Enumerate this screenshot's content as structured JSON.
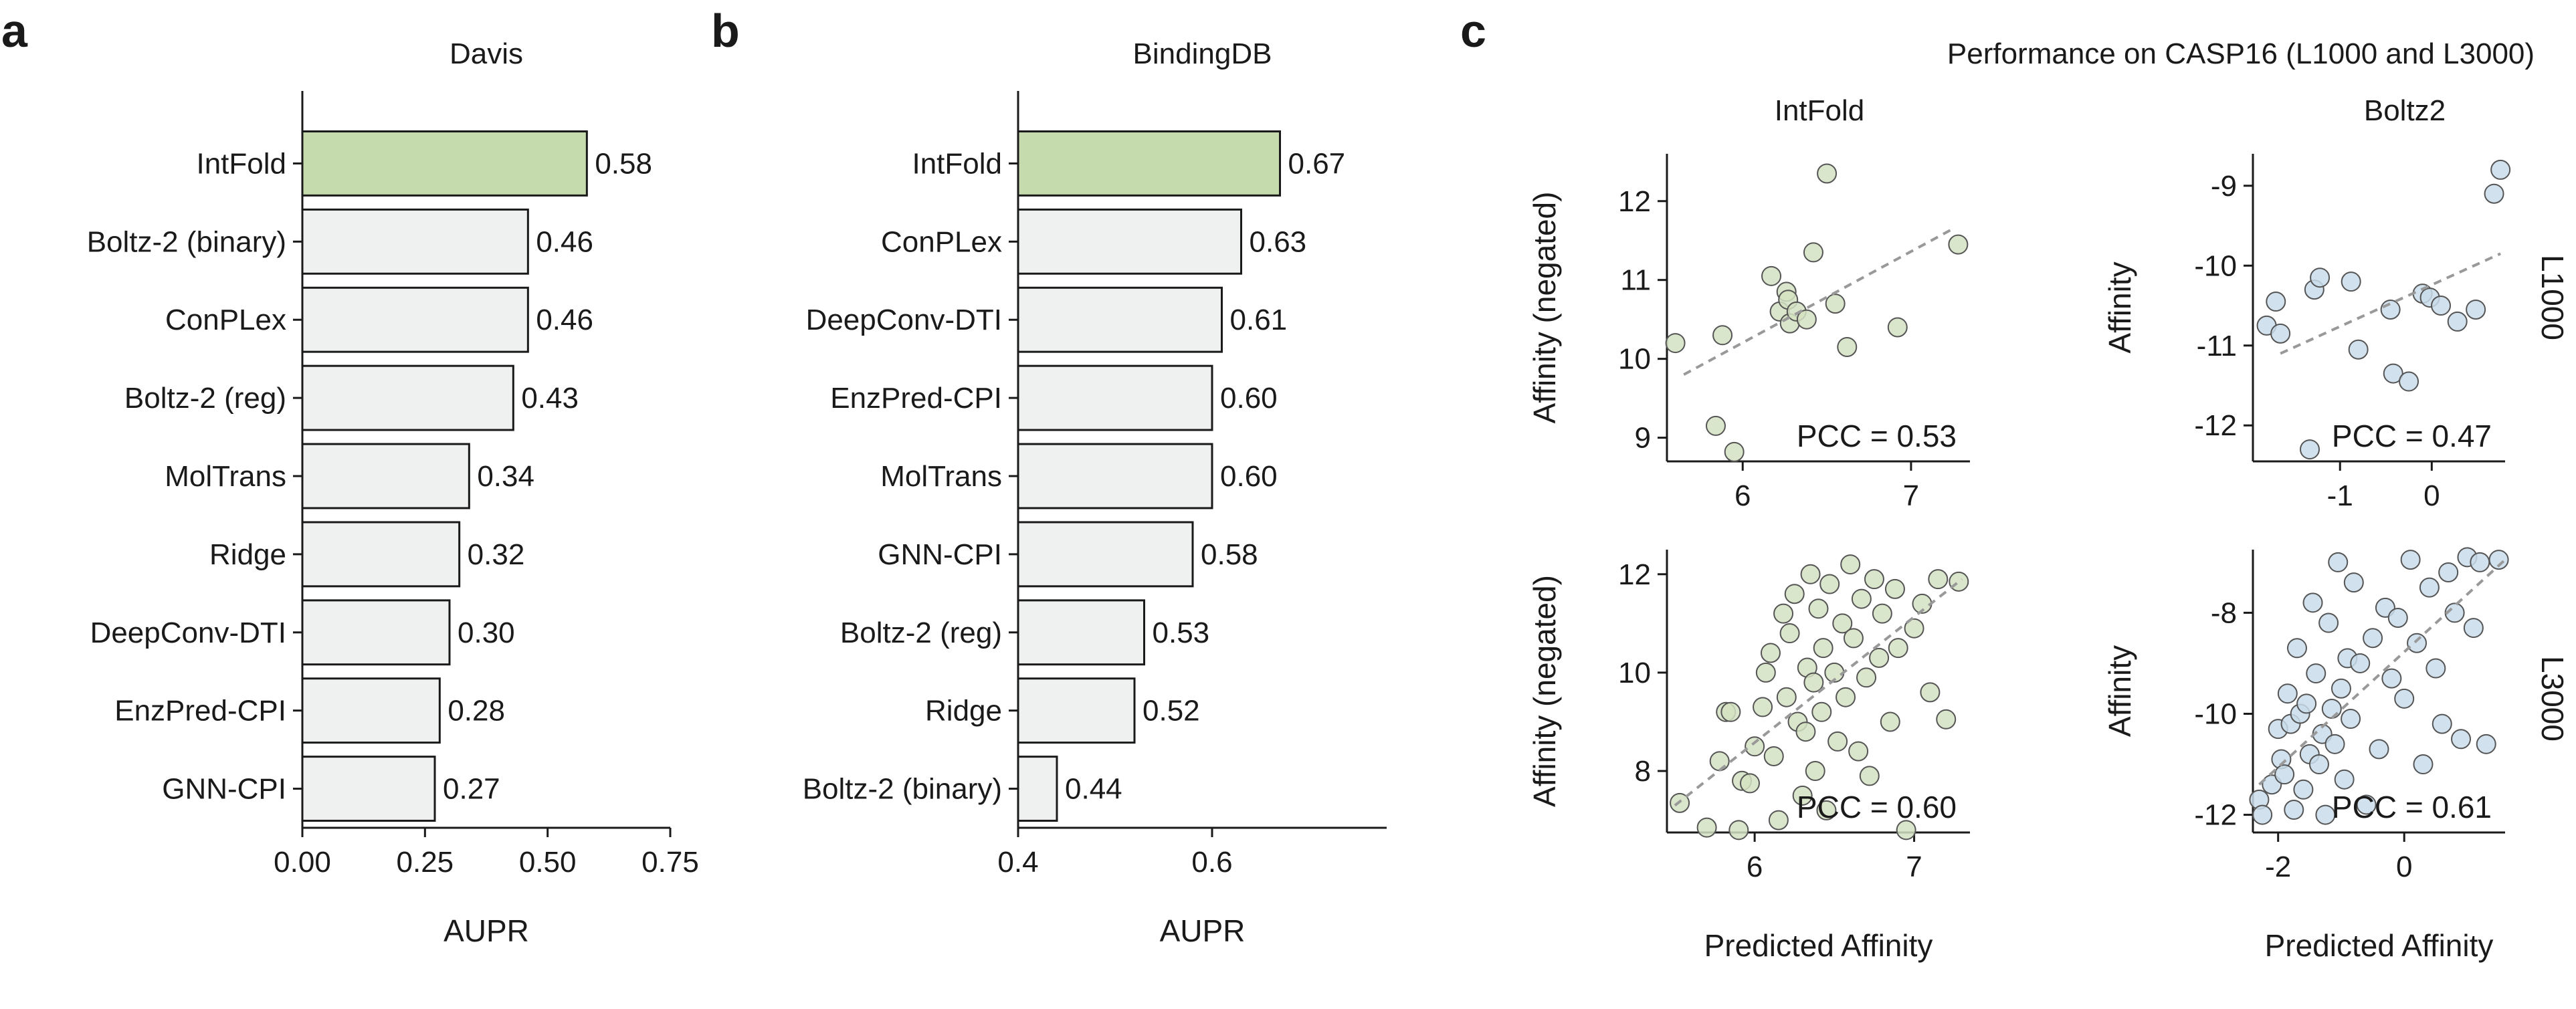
{
  "panels": {
    "a": "a",
    "b": "b",
    "c": "c"
  },
  "colors": {
    "highlight": "#c6dbad",
    "bar": "#eff0f0",
    "intfold_pts": "#d3e2c2",
    "boltz2_pts": "#c9dcea",
    "trend": "#999999"
  },
  "chart_data": [
    {
      "type": "bar",
      "orientation": "horizontal",
      "title": "Davis",
      "xlabel": "AUPR",
      "xlim": [
        0,
        0.75
      ],
      "xticks": [
        0.0,
        0.25,
        0.5,
        0.75
      ],
      "xtick_labels": [
        "0.00",
        "0.25",
        "0.50",
        "0.75"
      ],
      "categories": [
        "IntFold",
        "Boltz-2 (binary)",
        "ConPLex",
        "Boltz-2 (reg)",
        "MolTrans",
        "Ridge",
        "DeepConv-DTI",
        "EnzPred-CPI",
        "GNN-CPI"
      ],
      "values": [
        0.58,
        0.46,
        0.46,
        0.43,
        0.34,
        0.32,
        0.3,
        0.28,
        0.27
      ],
      "value_labels": [
        "0.58",
        "0.46",
        "0.46",
        "0.43",
        "0.34",
        "0.32",
        "0.30",
        "0.28",
        "0.27"
      ],
      "highlight": "IntFold"
    },
    {
      "type": "bar",
      "orientation": "horizontal",
      "title": "BindingDB",
      "xlabel": "AUPR",
      "xlim": [
        0.4,
        0.78
      ],
      "xticks": [
        0.4,
        0.6
      ],
      "xtick_labels": [
        "0.4",
        "0.6"
      ],
      "categories": [
        "IntFold",
        "ConPLex",
        "DeepConv-DTI",
        "EnzPred-CPI",
        "MolTrans",
        "GNN-CPI",
        "Boltz-2 (reg)",
        "Ridge",
        "Boltz-2 (binary)"
      ],
      "values": [
        0.67,
        0.63,
        0.61,
        0.6,
        0.6,
        0.58,
        0.53,
        0.52,
        0.44
      ],
      "value_labels": [
        "0.67",
        "0.63",
        "0.61",
        "0.60",
        "0.60",
        "0.58",
        "0.53",
        "0.52",
        "0.44"
      ],
      "highlight": "IntFold"
    },
    {
      "type": "scatter",
      "title": "Performance on CASP16 (L1000 and L3000)",
      "column_titles": [
        "IntFold",
        "Boltz2"
      ],
      "row_labels": [
        "L1000",
        "L3000"
      ],
      "xlabel": "Predicted Affinity",
      "subplots": [
        {
          "model": "IntFold",
          "set": "L1000",
          "ylabel": "Affinity (negated)",
          "pcc": "PCC = 0.53",
          "xlim": [
            5.55,
            7.35
          ],
          "ylim": [
            8.7,
            12.6
          ],
          "xticks": [
            6,
            7
          ],
          "yticks": [
            9,
            10,
            11,
            12
          ],
          "trend": [
            [
              5.65,
              9.8
            ],
            [
              7.25,
              11.65
            ]
          ],
          "points": [
            [
              5.6,
              10.2
            ],
            [
              5.88,
              10.3
            ],
            [
              5.84,
              9.15
            ],
            [
              5.95,
              8.82
            ],
            [
              6.17,
              11.05
            ],
            [
              6.22,
              10.6
            ],
            [
              6.26,
              10.85
            ],
            [
              6.27,
              10.75
            ],
            [
              6.28,
              10.45
            ],
            [
              6.32,
              10.6
            ],
            [
              6.38,
              10.5
            ],
            [
              6.42,
              11.35
            ],
            [
              6.5,
              12.35
            ],
            [
              6.55,
              10.7
            ],
            [
              6.62,
              10.15
            ],
            [
              6.92,
              10.4
            ],
            [
              7.28,
              11.45
            ]
          ]
        },
        {
          "model": "Boltz2",
          "set": "L1000",
          "ylabel": "Affinity",
          "pcc": "PCC = 0.47",
          "xlim": [
            -1.95,
            0.8
          ],
          "ylim": [
            -12.45,
            -8.6
          ],
          "xticks": [
            -1,
            0
          ],
          "yticks": [
            -12,
            -11,
            -10,
            -9
          ],
          "trend": [
            [
              -1.65,
              -11.1
            ],
            [
              0.75,
              -9.85
            ]
          ],
          "points": [
            [
              -1.8,
              -10.75
            ],
            [
              -1.7,
              -10.45
            ],
            [
              -1.65,
              -10.85
            ],
            [
              -1.33,
              -12.3
            ],
            [
              -1.28,
              -10.3
            ],
            [
              -1.22,
              -10.15
            ],
            [
              -0.88,
              -10.2
            ],
            [
              -0.8,
              -11.05
            ],
            [
              -0.45,
              -10.55
            ],
            [
              -0.42,
              -11.35
            ],
            [
              -0.25,
              -11.45
            ],
            [
              -0.1,
              -10.35
            ],
            [
              -0.02,
              -10.4
            ],
            [
              0.1,
              -10.5
            ],
            [
              0.28,
              -10.7
            ],
            [
              0.48,
              -10.55
            ],
            [
              0.68,
              -9.1
            ],
            [
              0.75,
              -8.8
            ]
          ]
        },
        {
          "model": "IntFold",
          "set": "L3000",
          "ylabel": "Affinity (negated)",
          "pcc": "PCC = 0.60",
          "xlim": [
            5.45,
            7.35
          ],
          "ylim": [
            6.75,
            12.5
          ],
          "xticks": [
            6,
            7
          ],
          "yticks": [
            8,
            10,
            12
          ],
          "trend": [
            [
              5.5,
              7.3
            ],
            [
              7.3,
              11.9
            ]
          ],
          "points": [
            [
              5.53,
              7.35
            ],
            [
              5.7,
              6.85
            ],
            [
              5.78,
              8.2
            ],
            [
              5.82,
              9.2
            ],
            [
              5.85,
              9.2
            ],
            [
              5.9,
              6.8
            ],
            [
              5.92,
              7.8
            ],
            [
              5.97,
              7.75
            ],
            [
              6.0,
              8.5
            ],
            [
              6.05,
              9.3
            ],
            [
              6.07,
              10.0
            ],
            [
              6.1,
              10.4
            ],
            [
              6.12,
              8.3
            ],
            [
              6.15,
              7.0
            ],
            [
              6.18,
              11.2
            ],
            [
              6.2,
              9.5
            ],
            [
              6.22,
              10.8
            ],
            [
              6.25,
              11.6
            ],
            [
              6.27,
              9.0
            ],
            [
              6.3,
              7.5
            ],
            [
              6.32,
              8.8
            ],
            [
              6.33,
              10.1
            ],
            [
              6.35,
              12.0
            ],
            [
              6.37,
              9.8
            ],
            [
              6.38,
              8.0
            ],
            [
              6.4,
              11.3
            ],
            [
              6.42,
              9.2
            ],
            [
              6.43,
              10.5
            ],
            [
              6.45,
              7.2
            ],
            [
              6.47,
              11.8
            ],
            [
              6.5,
              10.0
            ],
            [
              6.52,
              8.6
            ],
            [
              6.55,
              11.0
            ],
            [
              6.57,
              9.5
            ],
            [
              6.6,
              12.2
            ],
            [
              6.62,
              10.7
            ],
            [
              6.65,
              8.4
            ],
            [
              6.67,
              11.5
            ],
            [
              6.7,
              9.9
            ],
            [
              6.72,
              7.9
            ],
            [
              6.75,
              11.9
            ],
            [
              6.78,
              10.3
            ],
            [
              6.8,
              11.2
            ],
            [
              6.85,
              9.0
            ],
            [
              6.88,
              11.7
            ],
            [
              6.9,
              10.5
            ],
            [
              6.95,
              6.8
            ],
            [
              7.0,
              10.9
            ],
            [
              7.05,
              11.4
            ],
            [
              7.1,
              9.6
            ],
            [
              7.15,
              11.9
            ],
            [
              7.2,
              9.05
            ],
            [
              7.28,
              11.85
            ]
          ]
        },
        {
          "model": "Boltz2",
          "set": "L3000",
          "ylabel": "Affinity",
          "pcc": "PCC = 0.61",
          "xlim": [
            -2.4,
            1.6
          ],
          "ylim": [
            -12.35,
            -6.75
          ],
          "xticks": [
            -2,
            0
          ],
          "yticks": [
            -12,
            -10,
            -8
          ],
          "trend": [
            [
              -2.3,
              -11.4
            ],
            [
              1.6,
              -6.95
            ]
          ],
          "points": [
            [
              -2.3,
              -11.7
            ],
            [
              -2.25,
              -12.0
            ],
            [
              -2.1,
              -11.4
            ],
            [
              -2.0,
              -10.3
            ],
            [
              -1.95,
              -10.9
            ],
            [
              -1.9,
              -11.2
            ],
            [
              -1.85,
              -9.6
            ],
            [
              -1.8,
              -10.2
            ],
            [
              -1.75,
              -11.9
            ],
            [
              -1.7,
              -8.7
            ],
            [
              -1.65,
              -10.0
            ],
            [
              -1.6,
              -11.5
            ],
            [
              -1.55,
              -9.8
            ],
            [
              -1.5,
              -10.8
            ],
            [
              -1.45,
              -7.8
            ],
            [
              -1.4,
              -9.2
            ],
            [
              -1.35,
              -11.0
            ],
            [
              -1.3,
              -10.4
            ],
            [
              -1.25,
              -12.0
            ],
            [
              -1.2,
              -8.2
            ],
            [
              -1.15,
              -9.9
            ],
            [
              -1.1,
              -10.6
            ],
            [
              -1.05,
              -7.0
            ],
            [
              -1.0,
              -9.5
            ],
            [
              -0.95,
              -11.3
            ],
            [
              -0.9,
              -8.9
            ],
            [
              -0.85,
              -10.1
            ],
            [
              -0.8,
              -7.4
            ],
            [
              -0.7,
              -9.0
            ],
            [
              -0.6,
              -11.8
            ],
            [
              -0.5,
              -8.5
            ],
            [
              -0.4,
              -10.7
            ],
            [
              -0.3,
              -7.9
            ],
            [
              -0.2,
              -9.3
            ],
            [
              -0.1,
              -8.1
            ],
            [
              0.0,
              -9.7
            ],
            [
              0.1,
              -6.95
            ],
            [
              0.2,
              -8.6
            ],
            [
              0.3,
              -11.0
            ],
            [
              0.4,
              -7.5
            ],
            [
              0.5,
              -9.1
            ],
            [
              0.6,
              -10.2
            ],
            [
              0.7,
              -7.2
            ],
            [
              0.8,
              -8.0
            ],
            [
              0.9,
              -10.5
            ],
            [
              1.0,
              -6.9
            ],
            [
              1.1,
              -8.3
            ],
            [
              1.2,
              -7.0
            ],
            [
              1.3,
              -10.6
            ],
            [
              1.5,
              -6.95
            ]
          ]
        }
      ]
    }
  ]
}
